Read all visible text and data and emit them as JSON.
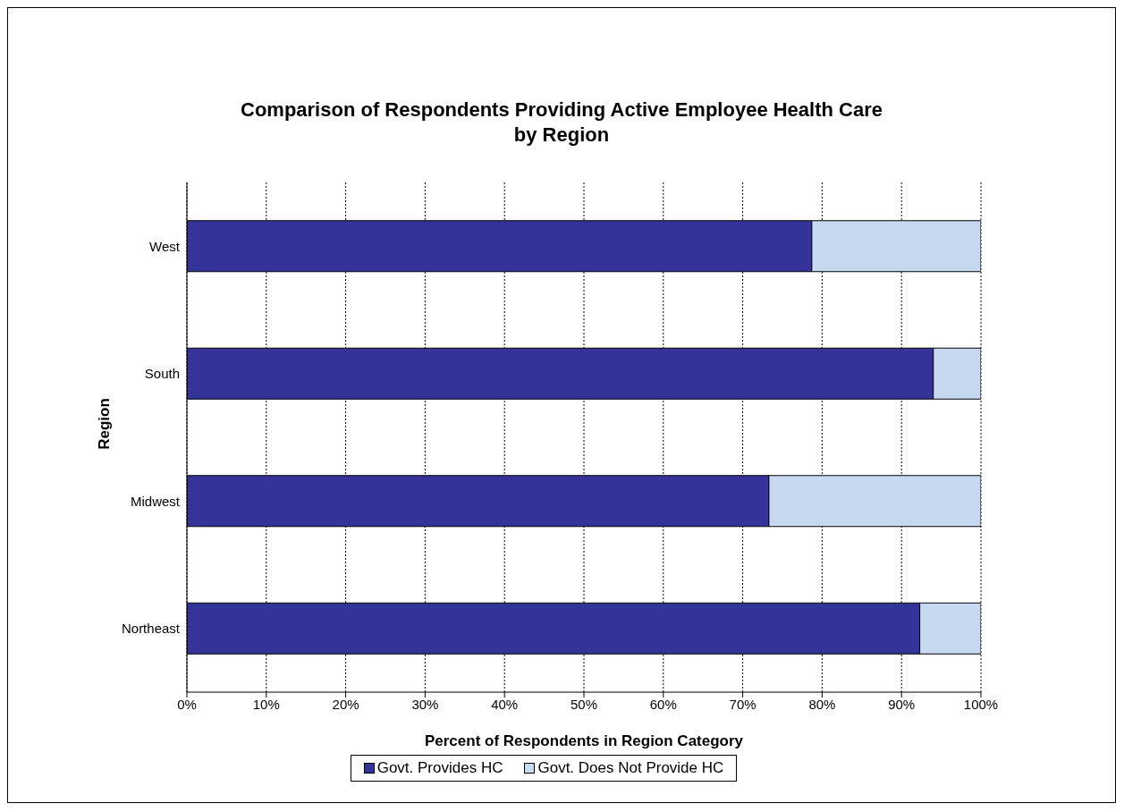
{
  "chart_data": {
    "type": "bar",
    "orientation": "horizontal",
    "stacked": true,
    "title": "Comparison of Respondents Providing Active Employee Health Care\nby Region",
    "xlabel": "Percent of Respondents in Region Category",
    "ylabel": "Region",
    "categories": [
      "West",
      "South",
      "Midwest",
      "Northeast"
    ],
    "series": [
      {
        "name": "Govt. Provides HC",
        "color": "#333399",
        "values": [
          78.7,
          94.0,
          73.3,
          92.3
        ]
      },
      {
        "name": "Govt. Does Not Provide HC",
        "color": "#c6d9f0",
        "values": [
          21.3,
          6.0,
          26.7,
          7.7
        ]
      }
    ],
    "xlim": [
      0,
      100
    ],
    "xticks": [
      {
        "value": 0,
        "label": "0%"
      },
      {
        "value": 10,
        "label": "10%"
      },
      {
        "value": 20,
        "label": "20%"
      },
      {
        "value": 30,
        "label": "30%"
      },
      {
        "value": 40,
        "label": "40%"
      },
      {
        "value": 50,
        "label": "50%"
      },
      {
        "value": 60,
        "label": "60%"
      },
      {
        "value": 70,
        "label": "70%"
      },
      {
        "value": 80,
        "label": "80%"
      },
      {
        "value": 90,
        "label": "90%"
      },
      {
        "value": 100,
        "label": "100%"
      }
    ],
    "grid": "x",
    "legend": "bottom"
  }
}
